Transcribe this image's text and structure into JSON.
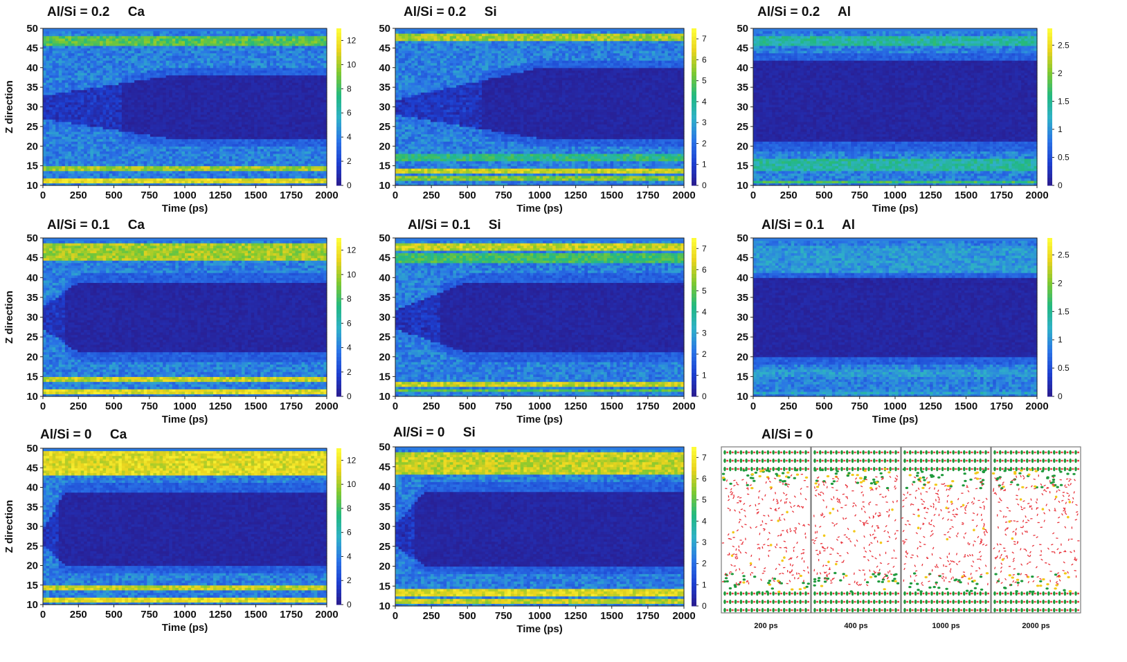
{
  "chart_data": [
    {
      "type": "heatmap",
      "title": "Al/Si = 0.2",
      "species": "Ca",
      "xlabel": "Time (ps)",
      "ylabel": "Z direction",
      "xlim": [
        0,
        2000
      ],
      "ylim": [
        10,
        50
      ],
      "cmin": 0,
      "cmax": 13,
      "xticks": [
        "0",
        "250",
        "500",
        "750",
        "1000",
        "1250",
        "1500",
        "1750",
        "2000"
      ],
      "yticks": [
        "10",
        "15",
        "20",
        "25",
        "30",
        "35",
        "40",
        "45",
        "50"
      ],
      "cticks": [
        "0",
        "2",
        "4",
        "6",
        "8",
        "10",
        "12"
      ],
      "cvals": [
        0,
        2,
        4,
        6,
        8,
        10,
        12
      ],
      "dense_bands": [
        {
          "z": [
            10.5,
            12
          ],
          "level": 0.95
        },
        {
          "z": [
            13.5,
            15
          ],
          "level": 0.85
        },
        {
          "z": [
            45.5,
            48
          ],
          "level": 0.75
        }
      ],
      "depletion_zone": {
        "z_low_start": 25,
        "z_high_start": 35,
        "z_low_end": 20,
        "z_high_end": 40,
        "formation_time": 900
      }
    },
    {
      "type": "heatmap",
      "title": "Al/Si = 0.2",
      "species": "Si",
      "xlabel": "Time (ps)",
      "ylabel": "Z direction",
      "xlim": [
        0,
        2000
      ],
      "ylim": [
        10,
        50
      ],
      "cmin": 0,
      "cmax": 7.5,
      "xticks": [
        "0",
        "250",
        "500",
        "750",
        "1000",
        "1250",
        "1500",
        "1750",
        "2000"
      ],
      "yticks": [
        "10",
        "15",
        "20",
        "25",
        "30",
        "35",
        "40",
        "45",
        "50"
      ],
      "cticks": [
        "0",
        "1",
        "2",
        "3",
        "4",
        "5",
        "6",
        "7"
      ],
      "cvals": [
        0,
        1,
        2,
        3,
        4,
        5,
        6,
        7
      ],
      "dense_bands": [
        {
          "z": [
            11,
            12.5
          ],
          "level": 0.8
        },
        {
          "z": [
            13,
            14.5
          ],
          "level": 0.9
        },
        {
          "z": [
            16.5,
            18
          ],
          "level": 0.65
        },
        {
          "z": [
            47,
            49
          ],
          "level": 0.85
        }
      ],
      "depletion_zone": {
        "z_low_start": 26,
        "z_high_start": 34,
        "z_low_end": 20,
        "z_high_end": 42,
        "formation_time": 1000
      }
    },
    {
      "type": "heatmap",
      "title": "Al/Si = 0.2",
      "species": "Al",
      "xlabel": "Time (ps)",
      "ylabel": "Z direction",
      "xlim": [
        0,
        2000
      ],
      "ylim": [
        10,
        50
      ],
      "cmin": 0,
      "cmax": 2.8,
      "xticks": [
        "0",
        "250",
        "500",
        "750",
        "1000",
        "1250",
        "1500",
        "1750",
        "2000"
      ],
      "yticks": [
        "10",
        "15",
        "20",
        "25",
        "30",
        "35",
        "40",
        "45",
        "50"
      ],
      "cticks": [
        "0",
        "0.5",
        "1",
        "1.5",
        "2",
        "2.5"
      ],
      "cvals": [
        0,
        0.5,
        1,
        1.5,
        2,
        2.5
      ],
      "dense_bands": [
        {
          "z": [
            10.5,
            11.5
          ],
          "level": 0.7
        },
        {
          "z": [
            14,
            17
          ],
          "level": 0.6
        },
        {
          "z": [
            45.5,
            48
          ],
          "level": 0.6
        }
      ],
      "depletion_zone": {
        "z_low_start": 20,
        "z_high_start": 43,
        "z_low_end": 19,
        "z_high_end": 44,
        "formation_time": 0
      }
    },
    {
      "type": "heatmap",
      "title": "Al/Si = 0.1",
      "species": "Ca",
      "xlabel": "Time (ps)",
      "ylabel": "Z direction",
      "xlim": [
        0,
        2000
      ],
      "ylim": [
        10,
        50
      ],
      "cmin": 0,
      "cmax": 13,
      "xticks": [
        "0",
        "250",
        "500",
        "750",
        "1000",
        "1250",
        "1500",
        "1750",
        "2000"
      ],
      "yticks": [
        "10",
        "15",
        "20",
        "25",
        "30",
        "35",
        "40",
        "45",
        "50"
      ],
      "cticks": [
        "0",
        "2",
        "4",
        "6",
        "8",
        "10",
        "12"
      ],
      "cvals": [
        0,
        2,
        4,
        6,
        8,
        10,
        12
      ],
      "dense_bands": [
        {
          "z": [
            10.5,
            12
          ],
          "level": 0.95
        },
        {
          "z": [
            13.5,
            15
          ],
          "level": 0.9
        },
        {
          "z": [
            44.5,
            49
          ],
          "level": 0.85
        }
      ],
      "depletion_zone": {
        "z_low_start": 25,
        "z_high_start": 35,
        "z_low_end": 19,
        "z_high_end": 41,
        "formation_time": 250
      }
    },
    {
      "type": "heatmap",
      "title": "Al/Si = 0.1",
      "species": "Si",
      "xlabel": "Time (ps)",
      "ylabel": "Z direction",
      "xlim": [
        0,
        2000
      ],
      "ylim": [
        10,
        50
      ],
      "cmin": 0,
      "cmax": 7.5,
      "xticks": [
        "0",
        "250",
        "500",
        "750",
        "1000",
        "1250",
        "1500",
        "1750",
        "2000"
      ],
      "yticks": [
        "10",
        "15",
        "20",
        "25",
        "30",
        "35",
        "40",
        "45",
        "50"
      ],
      "cticks": [
        "0",
        "1",
        "2",
        "3",
        "4",
        "5",
        "6",
        "7"
      ],
      "cvals": [
        0,
        1,
        2,
        3,
        4,
        5,
        6,
        7
      ],
      "dense_bands": [
        {
          "z": [
            11,
            12
          ],
          "level": 0.75
        },
        {
          "z": [
            12.5,
            14
          ],
          "level": 0.9
        },
        {
          "z": [
            44,
            46
          ],
          "level": 0.7
        },
        {
          "z": [
            47,
            49
          ],
          "level": 0.9
        }
      ],
      "depletion_zone": {
        "z_low_start": 25,
        "z_high_start": 34,
        "z_low_end": 19,
        "z_high_end": 41,
        "formation_time": 500
      }
    },
    {
      "type": "heatmap",
      "title": "Al/Si = 0.1",
      "species": "Al",
      "xlabel": "Time (ps)",
      "ylabel": "Z direction",
      "xlim": [
        0,
        2000
      ],
      "ylim": [
        10,
        50
      ],
      "cmin": 0,
      "cmax": 2.8,
      "xticks": [
        "0",
        "250",
        "500",
        "750",
        "1000",
        "1250",
        "1500",
        "1750",
        "2000"
      ],
      "yticks": [
        "10",
        "15",
        "20",
        "25",
        "30",
        "35",
        "40",
        "45",
        "50"
      ],
      "cticks": [
        "0",
        "0.5",
        "1",
        "1.5",
        "2",
        "2.5"
      ],
      "cvals": [
        0,
        0.5,
        1,
        1.5,
        2,
        2.5
      ],
      "dense_bands": [
        {
          "z": [
            15,
            17
          ],
          "level": 0.45
        },
        {
          "z": [
            10.5,
            11.2
          ],
          "level": 0.5
        },
        {
          "z": [
            41,
            48
          ],
          "level": 0.45
        }
      ],
      "depletion_zone": {
        "z_low_start": 18,
        "z_high_start": 40,
        "z_low_end": 18,
        "z_high_end": 42,
        "formation_time": 0
      }
    },
    {
      "type": "heatmap",
      "title": "Al/Si = 0",
      "species": "Ca",
      "xlabel": "Time (ps)",
      "ylabel": "Z direction",
      "xlim": [
        0,
        2000
      ],
      "ylim": [
        10,
        50
      ],
      "cmin": 0,
      "cmax": 13,
      "xticks": [
        "0",
        "250",
        "500",
        "750",
        "1000",
        "1250",
        "1500",
        "1750",
        "2000"
      ],
      "yticks": [
        "10",
        "15",
        "20",
        "25",
        "30",
        "35",
        "40",
        "45",
        "50"
      ],
      "cticks": [
        "0",
        "2",
        "4",
        "6",
        "8",
        "10",
        "12"
      ],
      "cvals": [
        0,
        2,
        4,
        6,
        8,
        10,
        12
      ],
      "dense_bands": [
        {
          "z": [
            10.5,
            12
          ],
          "level": 0.95
        },
        {
          "z": [
            13.5,
            15
          ],
          "level": 0.9
        },
        {
          "z": [
            43,
            49.5
          ],
          "level": 0.95
        }
      ],
      "depletion_zone": {
        "z_low_start": 23,
        "z_high_start": 32,
        "z_low_end": 18,
        "z_high_end": 41,
        "formation_time": 150
      }
    },
    {
      "type": "heatmap",
      "title": "Al/Si = 0",
      "species": "Si",
      "xlabel": "Time (ps)",
      "ylabel": "Z direction",
      "xlim": [
        0,
        2000
      ],
      "ylim": [
        10,
        50
      ],
      "cmin": 0,
      "cmax": 7.5,
      "xticks": [
        "0",
        "250",
        "500",
        "750",
        "1000",
        "1250",
        "1500",
        "1750",
        "2000"
      ],
      "yticks": [
        "10",
        "15",
        "20",
        "25",
        "30",
        "35",
        "40",
        "45",
        "50"
      ],
      "cticks": [
        "0",
        "1",
        "2",
        "3",
        "4",
        "5",
        "6",
        "7"
      ],
      "cvals": [
        0,
        1,
        2,
        3,
        4,
        5,
        6,
        7
      ],
      "dense_bands": [
        {
          "z": [
            10.5,
            12
          ],
          "level": 0.9
        },
        {
          "z": [
            12.5,
            14.5
          ],
          "level": 0.95
        },
        {
          "z": [
            43,
            49
          ],
          "level": 0.9
        }
      ],
      "depletion_zone": {
        "z_low_start": 23,
        "z_high_start": 33,
        "z_low_end": 18,
        "z_high_end": 41,
        "formation_time": 200
      }
    }
  ],
  "snapshots": {
    "title": "Al/Si = 0",
    "frames": [
      "200 ps",
      "400 ps",
      "1000 ps",
      "2000 ps"
    ],
    "atom_colors": {
      "oxygen": "#e8323a",
      "silicon": "#f2c81a",
      "calcium": "#1e9a3c"
    }
  },
  "colormap": [
    "#2a1b8c",
    "#1d3fd0",
    "#2a74e6",
    "#2fb0c8",
    "#22b880",
    "#7cc832",
    "#e8d21e",
    "#ffff3a"
  ]
}
